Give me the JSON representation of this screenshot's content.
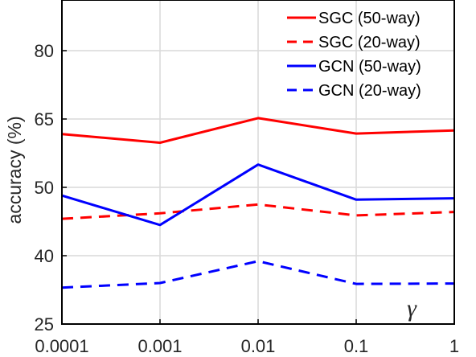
{
  "chart_data": {
    "type": "line",
    "x": [
      "0.0001",
      "0.001",
      "0.01",
      "0.1",
      "1"
    ],
    "xlabel": "",
    "ylabel": "accuracy (%)",
    "yticks": [
      {
        "value": 25,
        "label": "25"
      },
      {
        "value": 40,
        "label": "40"
      },
      {
        "value": 50,
        "label": "50"
      },
      {
        "value": 65,
        "label": "65"
      },
      {
        "value": 80,
        "label": "80"
      }
    ],
    "ylim": [
      25,
      90
    ],
    "grid": true,
    "legend_position": "top-right",
    "annotation": "γ",
    "series": [
      {
        "name": "SGC (50-way)",
        "color": "#ff0000",
        "dash": "solid",
        "values": [
          61.7,
          59.8,
          65.2,
          61.8,
          62.5
        ]
      },
      {
        "name": "SGC (20-way)",
        "color": "#ff0000",
        "dash": "dashed",
        "values": [
          45.4,
          46.2,
          47.5,
          45.9,
          46.4
        ]
      },
      {
        "name": "GCN (50-way)",
        "color": "#0000ff",
        "dash": "solid",
        "values": [
          48.8,
          44.5,
          55.0,
          48.2,
          48.4
        ]
      },
      {
        "name": "GCN (20-way)",
        "color": "#0000ff",
        "dash": "dashed",
        "values": [
          33.0,
          34.0,
          38.8,
          33.8,
          33.9
        ]
      }
    ]
  }
}
